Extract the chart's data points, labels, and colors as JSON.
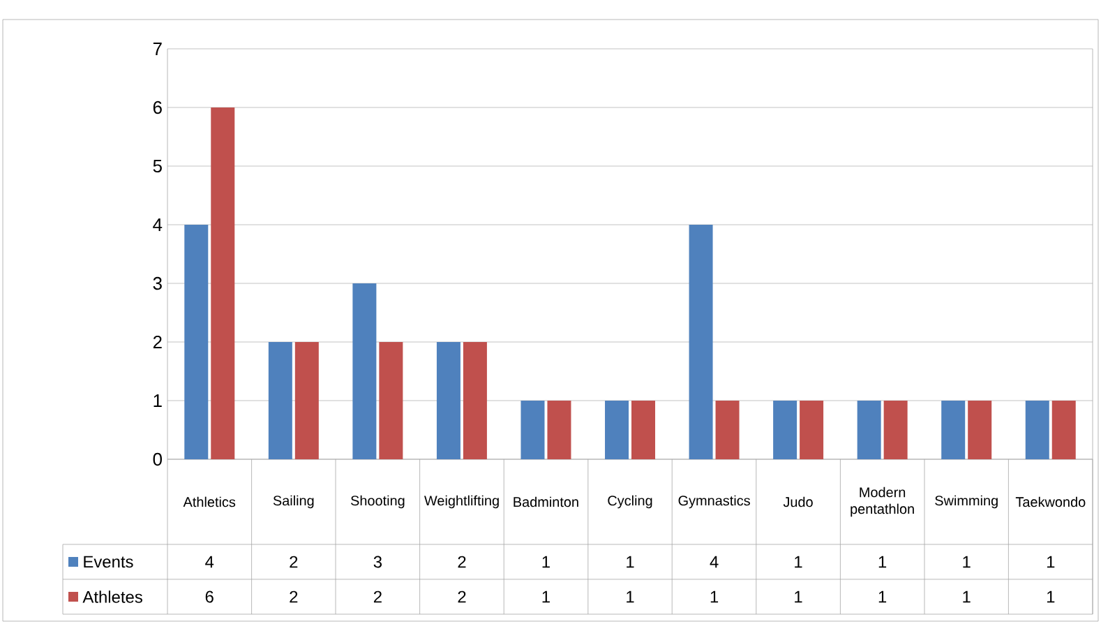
{
  "chart_data": {
    "type": "bar",
    "categories": [
      "Athletics",
      "Sailing",
      "Shooting",
      "Weightlifting",
      "Badminton",
      "Cycling",
      "Gymnastics",
      "Judo",
      "Modern pentathlon",
      "Swimming",
      "Taekwondo"
    ],
    "series": [
      {
        "name": "Events",
        "color": "#4f81bd",
        "values": [
          4,
          2,
          3,
          2,
          1,
          1,
          4,
          1,
          1,
          1,
          1
        ]
      },
      {
        "name": "Athletes",
        "color": "#c0504d",
        "values": [
          6,
          2,
          2,
          2,
          1,
          1,
          1,
          1,
          1,
          1,
          1
        ]
      }
    ],
    "ylim": [
      0,
      7
    ],
    "yticks": [
      0,
      1,
      2,
      3,
      4,
      5,
      6,
      7
    ],
    "grid": "y",
    "legend": "bottom",
    "data_labels": true
  }
}
